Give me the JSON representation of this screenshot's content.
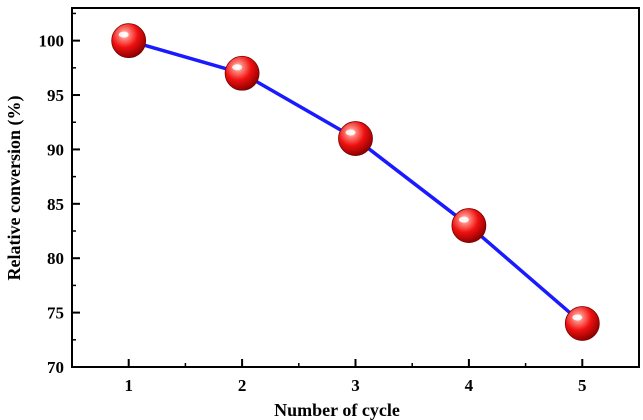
{
  "chart_data": {
    "type": "line",
    "title": "",
    "xlabel": "Number of cycle",
    "ylabel": "Relative conversion (%)",
    "x": [
      1,
      2,
      3,
      4,
      5
    ],
    "x_tick_labels": [
      "1",
      "2",
      "3",
      "4",
      "5"
    ],
    "xlim": [
      0.5,
      5.5
    ],
    "ylim": [
      70,
      103
    ],
    "y_ticks": [
      70,
      75,
      80,
      85,
      90,
      95,
      100
    ],
    "y_tick_labels": [
      "70",
      "75",
      "80",
      "85",
      "90",
      "95",
      "100"
    ],
    "grid": false,
    "legend": "none",
    "series": [
      {
        "values": [
          100,
          97,
          91,
          83,
          74
        ],
        "line_color": "#1a1aff",
        "marker": "sphere",
        "marker_color": "#e8140f"
      }
    ]
  }
}
